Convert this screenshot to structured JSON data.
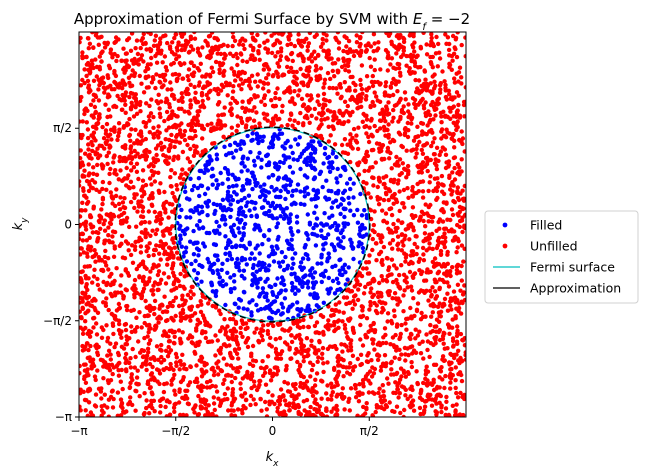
{
  "chart_data": {
    "type": "scatter",
    "title_main": "Approximation of Fermi Surface by SVM with ",
    "title_math": "E_f = −2",
    "xlabel": "k_x",
    "ylabel": "k_y",
    "xlim": [
      -3.14159,
      3.14159
    ],
    "ylim": [
      -3.14159,
      3.14159
    ],
    "x_ticks": [
      {
        "value": -3.14159,
        "label": "−π"
      },
      {
        "value": -1.5708,
        "label": "−π/2"
      },
      {
        "value": 0,
        "label": "0"
      },
      {
        "value": 1.5708,
        "label": "π/2"
      }
    ],
    "y_ticks": [
      {
        "value": -3.14159,
        "label": "−π"
      },
      {
        "value": -1.5708,
        "label": "−π/2"
      },
      {
        "value": 0,
        "label": "0"
      },
      {
        "value": 1.5708,
        "label": "π/2"
      }
    ],
    "grid": false,
    "legend_placement": "right, outside axes",
    "fermi_surface_radius": 1.57,
    "series": [
      {
        "name": "Filled",
        "kind": "scatter",
        "color": "#0000ff",
        "region": "inside fermi surface",
        "approx_count": 900
      },
      {
        "name": "Unfilled",
        "kind": "scatter",
        "color": "#ff0000",
        "region": "outside fermi surface",
        "approx_count": 4300
      },
      {
        "name": "Fermi surface",
        "kind": "line",
        "color": "#00bfbf",
        "shape": "circle",
        "radius": 1.57
      },
      {
        "name": "Approximation",
        "kind": "line",
        "color": "#000000",
        "style": "dashed",
        "shape": "circle",
        "radius": 1.58
      }
    ]
  }
}
